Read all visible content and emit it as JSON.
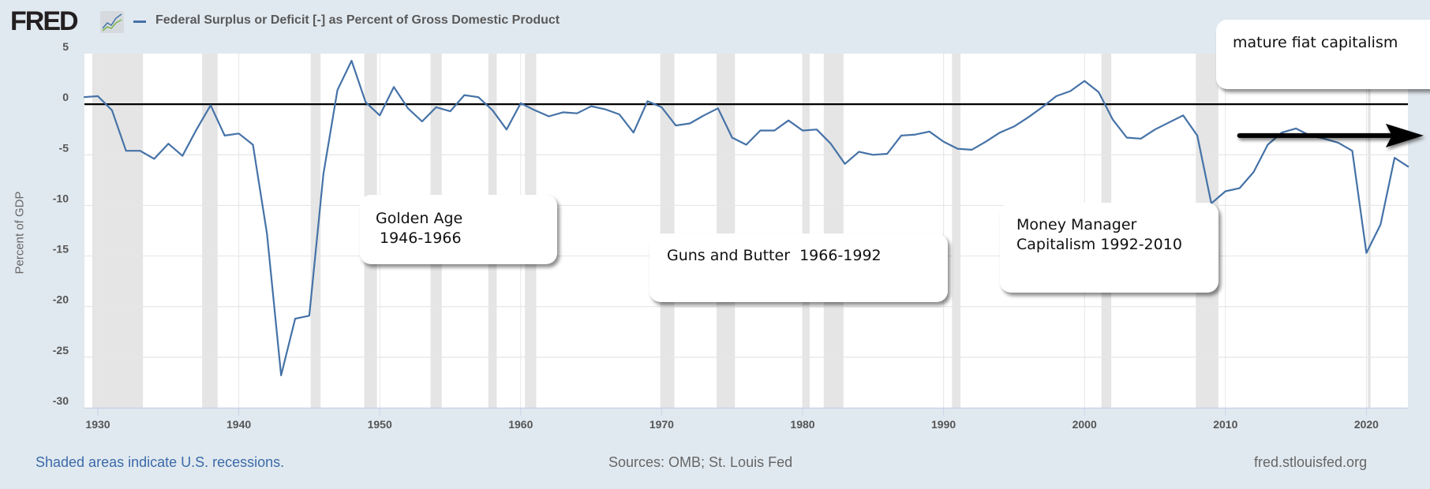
{
  "header": {
    "logo_text": "FRED",
    "title": "Federal Surplus or Deficit [-] as Percent of Gross Domestic Product"
  },
  "footer": {
    "recession_note": "Shaded areas indicate U.S. recessions.",
    "sources": "Sources: OMB; St. Louis Fed",
    "url": "fred.stlouisfed.org"
  },
  "annotations": {
    "golden_age": {
      "line1": "Golden Age",
      "line2": "1946-1966",
      "color": "#e0c020",
      "start": 1946,
      "end": 1968,
      "level": -5
    },
    "guns_butter": {
      "line1": "Guns and Butter  1966-1992",
      "color": "#ee1111",
      "start": 1968.5,
      "end": 1992,
      "level": -10
    },
    "money_manager": {
      "line1": "Money Manager",
      "line2": "Capitalism 1992-2010",
      "color": "#86a355",
      "start": 1991.6,
      "end": 2010.8,
      "level": -6.4
    },
    "mature_fiat": {
      "line1": "mature fiat capitalism",
      "arrow_start": 2011,
      "arrow_end": 2023.5,
      "level": -3.1
    }
  },
  "colors": {
    "series": "#4572a7",
    "recession": "#e5e5e5",
    "grid": "#e6e6e6",
    "zero_line": "#000000",
    "plot_bg": "#ffffff"
  },
  "chart_data": {
    "type": "line",
    "title": "Federal Surplus or Deficit [-] as Percent of Gross Domestic Product",
    "xlabel": "",
    "ylabel": "Percent of GDP",
    "xlim": [
      1929,
      2023
    ],
    "ylim": [
      -30,
      5
    ],
    "x_ticks": [
      1930,
      1940,
      1950,
      1960,
      1970,
      1980,
      1990,
      2000,
      2010,
      2020
    ],
    "y_ticks": [
      5,
      0,
      -5,
      -10,
      -15,
      -20,
      -25,
      -30
    ],
    "grid": true,
    "legend": "top-left",
    "series": [
      {
        "name": "Federal Surplus or Deficit [-] as Percent of Gross Domestic Product",
        "x": [
          1929,
          1930,
          1931,
          1932,
          1933,
          1934,
          1935,
          1936,
          1937,
          1938,
          1939,
          1940,
          1941,
          1942,
          1943,
          1944,
          1945,
          1946,
          1947,
          1948,
          1949,
          1950,
          1951,
          1952,
          1953,
          1954,
          1955,
          1956,
          1957,
          1958,
          1959,
          1960,
          1961,
          1962,
          1963,
          1964,
          1965,
          1966,
          1967,
          1968,
          1969,
          1970,
          1971,
          1972,
          1973,
          1974,
          1975,
          1976,
          1977,
          1978,
          1979,
          1980,
          1981,
          1982,
          1983,
          1984,
          1985,
          1986,
          1987,
          1988,
          1989,
          1990,
          1991,
          1992,
          1993,
          1994,
          1995,
          1996,
          1997,
          1998,
          1999,
          2000,
          2001,
          2002,
          2003,
          2004,
          2005,
          2006,
          2007,
          2008,
          2009,
          2010,
          2011,
          2012,
          2013,
          2014,
          2015,
          2016,
          2017,
          2018,
          2019,
          2020,
          2021,
          2022,
          2023
        ],
        "values": [
          0.7,
          0.8,
          -0.6,
          -4.6,
          -4.6,
          -5.4,
          -3.9,
          -5.1,
          -2.5,
          -0.1,
          -3.1,
          -2.9,
          -4.0,
          -12.8,
          -26.8,
          -21.2,
          -20.9,
          -6.9,
          1.4,
          4.3,
          0.2,
          -1.1,
          1.7,
          -0.4,
          -1.7,
          -0.3,
          -0.7,
          0.9,
          0.7,
          -0.6,
          -2.5,
          0.1,
          -0.6,
          -1.2,
          -0.8,
          -0.9,
          -0.2,
          -0.5,
          -1.0,
          -2.8,
          0.3,
          -0.3,
          -2.1,
          -1.9,
          -1.1,
          -0.4,
          -3.3,
          -4.0,
          -2.6,
          -2.6,
          -1.6,
          -2.6,
          -2.5,
          -3.9,
          -5.9,
          -4.7,
          -5.0,
          -4.9,
          -3.1,
          -3.0,
          -2.7,
          -3.7,
          -4.4,
          -4.5,
          -3.7,
          -2.8,
          -2.2,
          -1.3,
          -0.3,
          0.8,
          1.3,
          2.3,
          1.2,
          -1.5,
          -3.3,
          -3.4,
          -2.5,
          -1.8,
          -1.1,
          -3.1,
          -9.8,
          -8.6,
          -8.3,
          -6.7,
          -4.0,
          -2.8,
          -2.4,
          -3.1,
          -3.4,
          -3.8,
          -4.6,
          -14.7,
          -11.9,
          -5.3,
          -6.2
        ]
      }
    ],
    "recessions": [
      [
        1929.6,
        1933.2
      ],
      [
        1937.4,
        1938.5
      ],
      [
        1945.1,
        1945.8
      ],
      [
        1948.9,
        1949.8
      ],
      [
        1953.6,
        1954.4
      ],
      [
        1957.7,
        1958.3
      ],
      [
        1960.3,
        1961.1
      ],
      [
        1969.9,
        1970.9
      ],
      [
        1973.9,
        1975.2
      ],
      [
        1980.0,
        1980.5
      ],
      [
        1981.5,
        1982.9
      ],
      [
        1990.6,
        1991.2
      ],
      [
        2001.2,
        2001.9
      ],
      [
        2007.9,
        2009.5
      ],
      [
        2020.1,
        2020.3
      ]
    ],
    "reference_line": 0
  }
}
